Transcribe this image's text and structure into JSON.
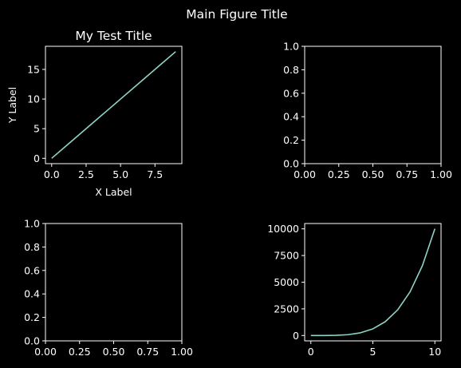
{
  "figure": {
    "suptitle": "Main Figure Title",
    "colors": {
      "background": "#000000",
      "line": "#8dd3c7",
      "axes": "#ffffff",
      "text": "#ffffff"
    }
  },
  "chart_data": [
    {
      "type": "line",
      "panel": "top-left",
      "title": "My Test Title",
      "xlabel": "X Label",
      "ylabel": "Y Label",
      "xlim": [
        -0.45,
        9.45
      ],
      "ylim": [
        -0.9,
        18.9
      ],
      "x_ticks": [
        0,
        2.5,
        5,
        7.5
      ],
      "x_tick_labels": [
        "0.0",
        "2.5",
        "5.0",
        "7.5"
      ],
      "y_ticks": [
        0,
        5,
        10,
        15
      ],
      "y_tick_labels": [
        "0",
        "5",
        "10",
        "15"
      ],
      "series": [
        {
          "x": [
            0,
            1,
            2,
            3,
            4,
            5,
            6,
            7,
            8,
            9
          ],
          "values": [
            0,
            2,
            4,
            6,
            8,
            10,
            12,
            14,
            16,
            18
          ]
        }
      ]
    },
    {
      "type": "line",
      "panel": "top-right",
      "title": "",
      "xlabel": "",
      "ylabel": "",
      "xlim": [
        0,
        1
      ],
      "ylim": [
        0,
        1
      ],
      "x_ticks": [
        0,
        0.25,
        0.5,
        0.75,
        1
      ],
      "x_tick_labels": [
        "0.00",
        "0.25",
        "0.50",
        "0.75",
        "1.00"
      ],
      "y_ticks": [
        0,
        0.2,
        0.4,
        0.6,
        0.8,
        1
      ],
      "y_tick_labels": [
        "0.0",
        "0.2",
        "0.4",
        "0.6",
        "0.8",
        "1.0"
      ],
      "series": []
    },
    {
      "type": "line",
      "panel": "bottom-left",
      "title": "",
      "xlabel": "",
      "ylabel": "",
      "xlim": [
        0,
        1
      ],
      "ylim": [
        0,
        1
      ],
      "x_ticks": [
        0,
        0.25,
        0.5,
        0.75,
        1
      ],
      "x_tick_labels": [
        "0.00",
        "0.25",
        "0.50",
        "0.75",
        "1.00"
      ],
      "y_ticks": [
        0,
        0.2,
        0.4,
        0.6,
        0.8,
        1
      ],
      "y_tick_labels": [
        "0.0",
        "0.2",
        "0.4",
        "0.6",
        "0.8",
        "1.0"
      ],
      "series": []
    },
    {
      "type": "line",
      "panel": "bottom-right",
      "title": "",
      "xlabel": "",
      "ylabel": "",
      "xlim": [
        -0.5,
        10.5
      ],
      "ylim": [
        -500,
        10500
      ],
      "x_ticks": [
        0,
        5,
        10
      ],
      "x_tick_labels": [
        "0",
        "5",
        "10"
      ],
      "y_ticks": [
        0,
        2500,
        5000,
        7500,
        10000
      ],
      "y_tick_labels": [
        "0",
        "2500",
        "5000",
        "7500",
        "10000"
      ],
      "series": [
        {
          "x": [
            0,
            1,
            2,
            3,
            4,
            5,
            6,
            7,
            8,
            9,
            10
          ],
          "values": [
            0,
            1,
            16,
            81,
            256,
            625,
            1296,
            2401,
            4096,
            6561,
            10000
          ]
        }
      ]
    }
  ]
}
